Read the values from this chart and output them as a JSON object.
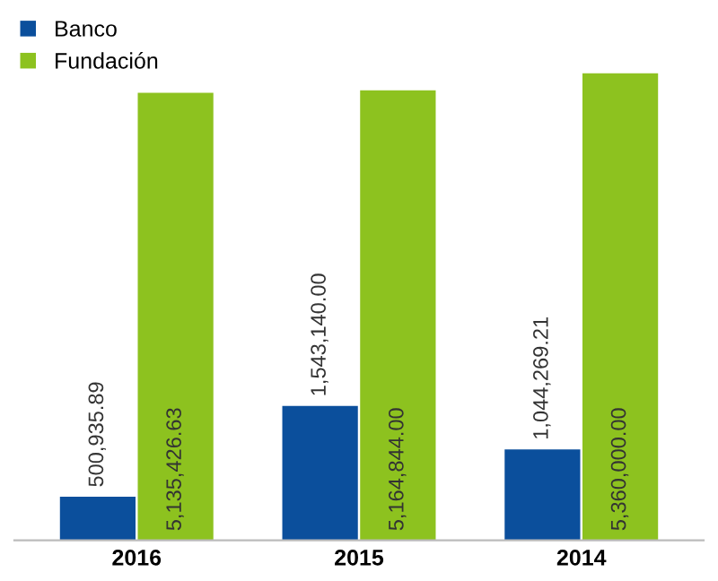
{
  "chart_data": {
    "type": "bar",
    "categories": [
      "2016",
      "2015",
      "2014"
    ],
    "series": [
      {
        "name": "Banco",
        "color": "#0b4f9c",
        "values": [
          500935.89,
          1543140.0,
          1044269.21
        ],
        "value_labels": [
          "500,935.89",
          "1,543,140.00",
          "1,044,269.21"
        ]
      },
      {
        "name": "Fundación",
        "color": "#8dc21f",
        "values": [
          5135426.63,
          5164844.0,
          5360000.0
        ],
        "value_labels": [
          "5,135,426.63",
          "5,164,844.00",
          "5,360,000.00"
        ]
      }
    ],
    "legend": "top left",
    "grid": false
  }
}
